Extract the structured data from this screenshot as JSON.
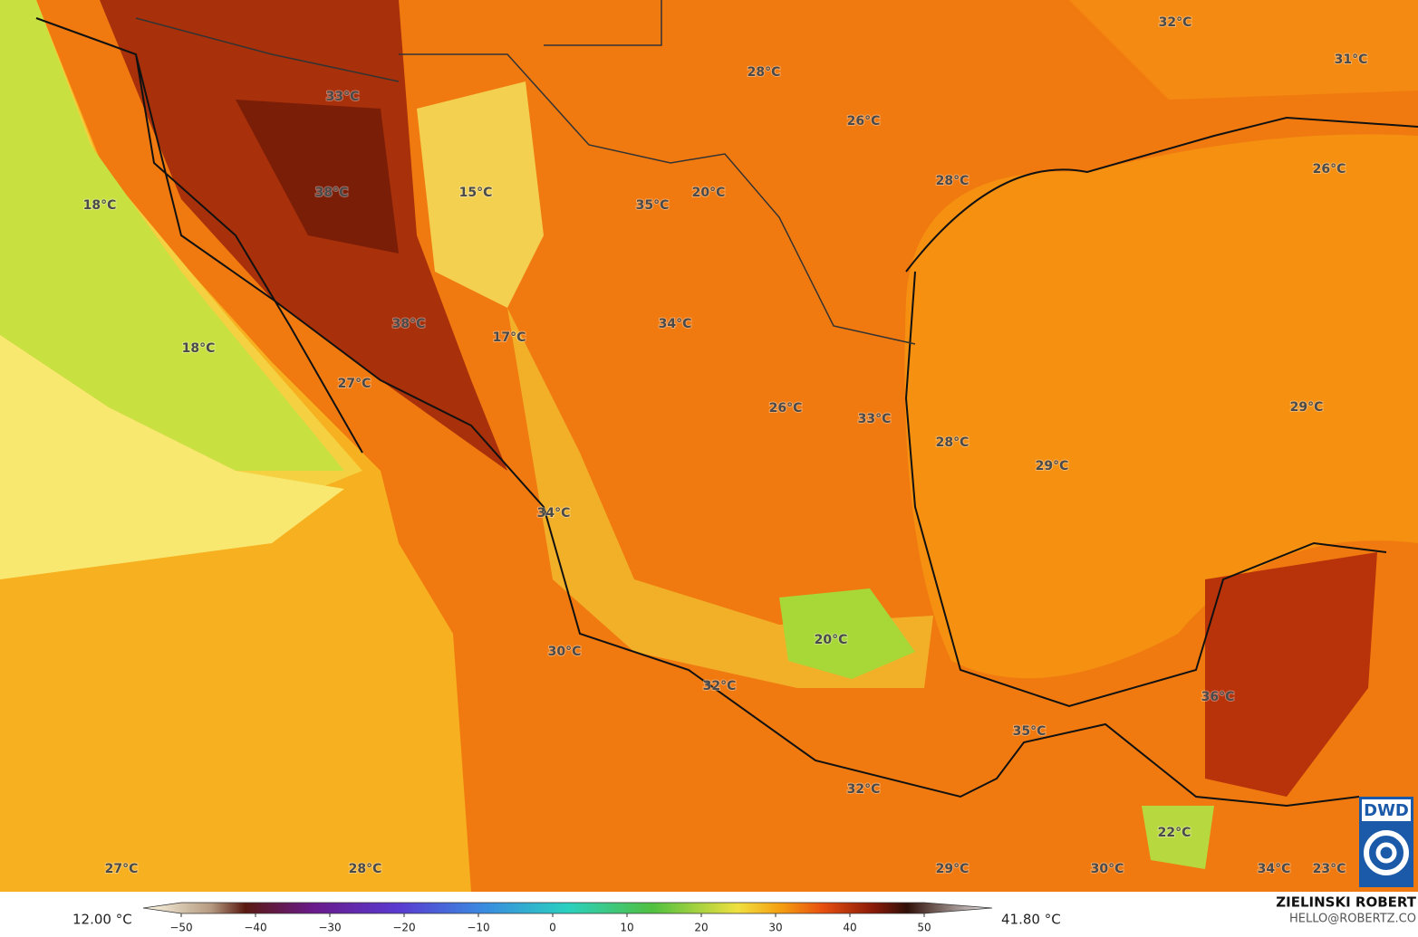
{
  "map": {
    "labels": [
      "32°C",
      "31°C",
      "28°C",
      "33°C",
      "26°C",
      "26°C",
      "38°C",
      "15°C",
      "20°C",
      "35°C",
      "18°C",
      "28°C",
      "38°C",
      "34°C",
      "17°C",
      "18°C",
      "27°C",
      "26°C",
      "29°C",
      "33°C",
      "28°C",
      "29°C",
      "34°C",
      "30°C",
      "20°C",
      "32°C",
      "36°C",
      "35°C",
      "32°C",
      "22°C",
      "27°C",
      "28°C",
      "29°C",
      "30°C",
      "34°C",
      "23°C"
    ],
    "logo": "DWD"
  },
  "colorbar": {
    "min_label": "12.00 °C",
    "max_label": "41.80 °C",
    "ticks": [
      {
        "value": -50,
        "label": "−50"
      },
      {
        "value": -40,
        "label": "−40"
      },
      {
        "value": -30,
        "label": "−30"
      },
      {
        "value": -20,
        "label": "−20"
      },
      {
        "value": -10,
        "label": "−10"
      },
      0,
      10,
      20,
      30,
      40,
      50
    ]
  },
  "credit": {
    "name": "ZIELINSKI ROBERT",
    "email": "HELLO@ROBERTZ.CO"
  }
}
